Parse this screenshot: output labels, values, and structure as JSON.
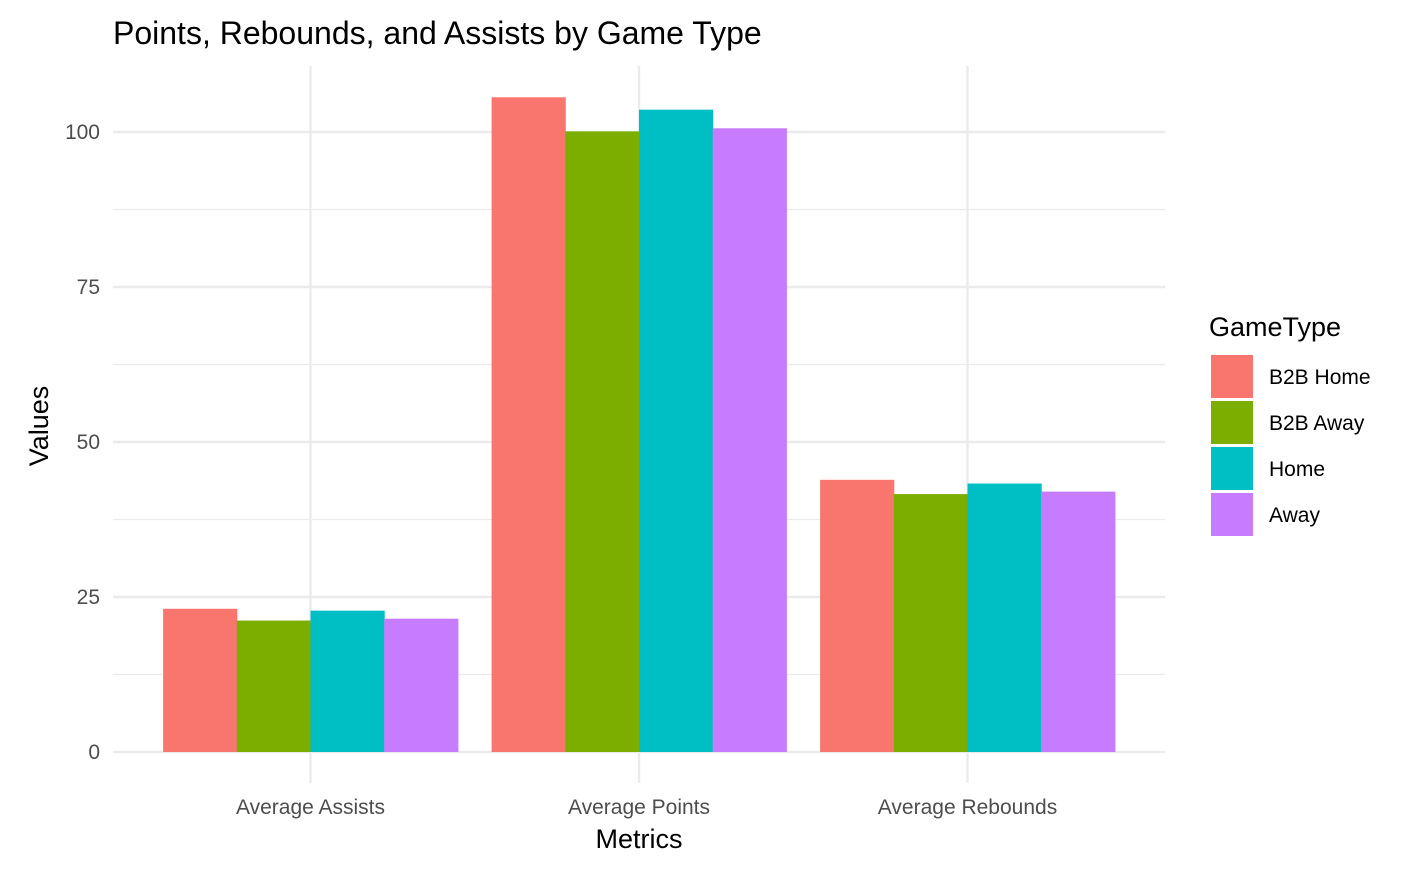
{
  "chart_data": {
    "type": "bar",
    "title": "Points, Rebounds, and Assists by Game Type",
    "xlabel": "Metrics",
    "ylabel": "Values",
    "categories": [
      "Average Assists",
      "Average Points",
      "Average Rebounds"
    ],
    "series": [
      {
        "name": "B2B Home",
        "color": "#F8766D",
        "values": [
          23.1,
          105.6,
          43.9
        ]
      },
      {
        "name": "B2B Away",
        "color": "#7CAE00",
        "values": [
          21.2,
          100.1,
          41.6
        ]
      },
      {
        "name": "Home",
        "color": "#00BFC4",
        "values": [
          22.8,
          103.6,
          43.3
        ]
      },
      {
        "name": "Away",
        "color": "#C77CFF",
        "values": [
          21.5,
          100.6,
          42.0
        ]
      }
    ],
    "ylim": [
      0,
      110
    ],
    "yticks": [
      0,
      25,
      50,
      75,
      100
    ],
    "grid": true,
    "legend_title": "GameType",
    "legend_position": "right"
  }
}
